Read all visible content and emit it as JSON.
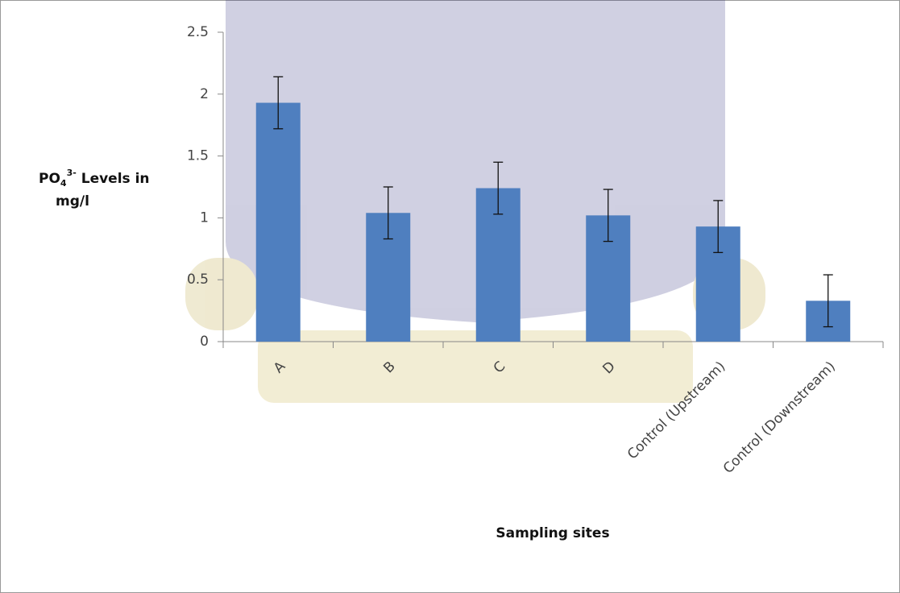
{
  "chart_data": {
    "type": "bar",
    "ylabel": [
      "PO",
      "4",
      "3-",
      " Levels in",
      "mg/l"
    ],
    "xlabel": "Sampling sites",
    "categories": [
      "A",
      "B",
      "C",
      "D",
      "Control (Upstream)",
      "Control (Downstream)"
    ],
    "values": [
      1.93,
      1.04,
      1.24,
      1.02,
      0.93,
      0.33
    ],
    "errors": [
      0.21,
      0.21,
      0.21,
      0.21,
      0.21,
      0.21
    ],
    "color": "#4f7fbf",
    "ylim": [
      0,
      2.5
    ],
    "yticks": [
      0,
      0.5,
      1,
      1.5,
      2,
      2.5
    ],
    "grid": false
  }
}
